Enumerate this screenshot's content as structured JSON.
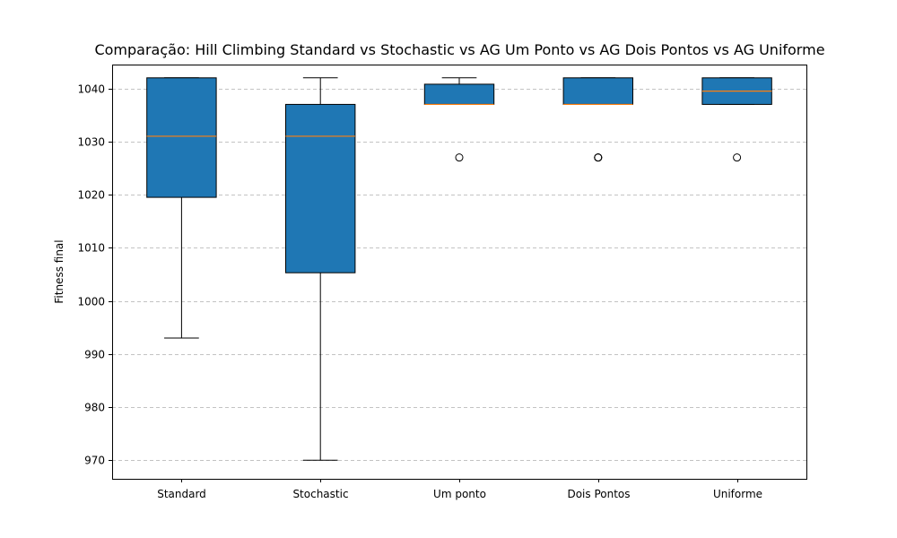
{
  "chart_data": {
    "type": "box",
    "title": "Comparação: Hill Climbing Standard vs Stochastic vs AG Um Ponto vs AG Dois Pontos vs AG Uniforme",
    "xlabel": "",
    "ylabel": "Fitness final",
    "ylim": [
      966.5,
      1044.5
    ],
    "yticks": [
      970,
      980,
      990,
      1000,
      1010,
      1020,
      1030,
      1040
    ],
    "grid": "y-dashed",
    "categories": [
      "Standard",
      "Stochastic",
      "Um ponto",
      "Dois Pontos",
      "Uniforme"
    ],
    "boxes": [
      {
        "name": "Standard",
        "whislo": 993,
        "q1": 1019.5,
        "med": 1031,
        "q3": 1042,
        "whishi": 1042,
        "fliers": []
      },
      {
        "name": "Stochastic",
        "whislo": 970,
        "q1": 1005.3,
        "med": 1031,
        "q3": 1037,
        "whishi": 1042,
        "fliers": []
      },
      {
        "name": "Um ponto",
        "whislo": 1037,
        "q1": 1037,
        "med": 1037,
        "q3": 1040.8,
        "whishi": 1042,
        "fliers": [
          1027
        ]
      },
      {
        "name": "Dois Pontos",
        "whislo": 1037,
        "q1": 1037,
        "med": 1037,
        "q3": 1042,
        "whishi": 1042,
        "fliers": [
          1027,
          1027,
          1027
        ]
      },
      {
        "name": "Uniforme",
        "whislo": 1037,
        "q1": 1037,
        "med": 1039.5,
        "q3": 1042,
        "whishi": 1042,
        "fliers": [
          1027
        ]
      }
    ],
    "colors": {
      "box_fill": "#1f77b4",
      "median": "#ff7f0e",
      "edge": "#000000",
      "grid": "#b0b0b0"
    }
  }
}
